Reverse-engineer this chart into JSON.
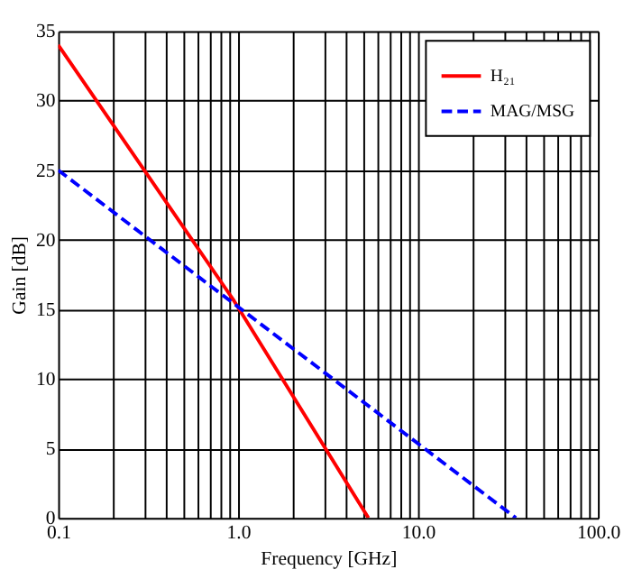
{
  "chart_data": {
    "type": "line",
    "xlabel": "Frequency [GHz]",
    "ylabel": "Gain [dB]",
    "log": "x",
    "xlim": [
      0.1,
      100
    ],
    "ylim": [
      0,
      35
    ],
    "xticks": [
      {
        "value": 0.1,
        "label": "0.1"
      },
      {
        "value": 0.2,
        "label": null
      },
      {
        "value": 0.3,
        "label": null
      },
      {
        "value": 0.4,
        "label": null
      },
      {
        "value": 0.5,
        "label": null
      },
      {
        "value": 0.6,
        "label": null
      },
      {
        "value": 0.7,
        "label": null
      },
      {
        "value": 0.8,
        "label": null
      },
      {
        "value": 0.9,
        "label": null
      },
      {
        "value": 1,
        "label": "1.0"
      },
      {
        "value": 2,
        "label": null
      },
      {
        "value": 3,
        "label": null
      },
      {
        "value": 4,
        "label": null
      },
      {
        "value": 5,
        "label": null
      },
      {
        "value": 6,
        "label": null
      },
      {
        "value": 7,
        "label": null
      },
      {
        "value": 8,
        "label": null
      },
      {
        "value": 9,
        "label": null
      },
      {
        "value": 10,
        "label": "10.0"
      },
      {
        "value": 20,
        "label": null
      },
      {
        "value": 30,
        "label": null
      },
      {
        "value": 40,
        "label": null
      },
      {
        "value": 50,
        "label": null
      },
      {
        "value": 60,
        "label": null
      },
      {
        "value": 70,
        "label": null
      },
      {
        "value": 80,
        "label": null
      },
      {
        "value": 90,
        "label": null
      },
      {
        "value": 100,
        "label": "100.0"
      }
    ],
    "yticks": [
      0,
      5,
      10,
      15,
      20,
      25,
      30,
      35
    ],
    "grid": true,
    "legend": "top right",
    "series": [
      {
        "name": "H₂₁",
        "color": "#ff0000",
        "line_style": "solid",
        "x": [
          0.1,
          0.95,
          5.3
        ],
        "values": [
          34,
          15.6,
          0
        ]
      },
      {
        "name": "MAG/MSG",
        "color": "#0000ff",
        "line_style": "dashed",
        "x": [
          0.1,
          35
        ],
        "values": [
          25,
          0
        ]
      }
    ]
  }
}
